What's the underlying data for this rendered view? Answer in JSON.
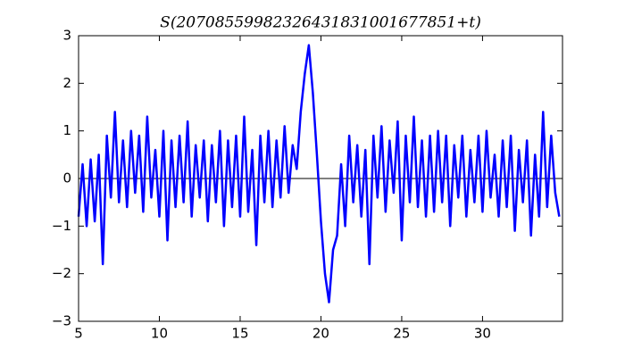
{
  "chart_data": {
    "type": "line",
    "title": "S(20708559982326431831001677851+t)",
    "x": [
      5,
      5.25,
      5.5,
      5.75,
      6,
      6.25,
      6.5,
      6.75,
      7,
      7.25,
      7.5,
      7.75,
      8,
      8.25,
      8.5,
      8.75,
      9,
      9.25,
      9.5,
      9.75,
      10,
      10.25,
      10.5,
      10.75,
      11,
      11.25,
      11.5,
      11.75,
      12,
      12.25,
      12.5,
      12.75,
      13,
      13.25,
      13.5,
      13.75,
      14,
      14.25,
      14.5,
      14.75,
      15,
      15.25,
      15.5,
      15.75,
      16,
      16.25,
      16.5,
      16.75,
      17,
      17.25,
      17.5,
      17.75,
      18,
      18.25,
      18.5,
      18.75,
      19,
      19.25,
      19.5,
      19.75,
      20,
      20.25,
      20.5,
      20.75,
      21,
      21.25,
      21.5,
      21.75,
      22,
      22.25,
      22.5,
      22.75,
      23,
      23.25,
      23.5,
      23.75,
      24,
      24.25,
      24.5,
      24.75,
      25,
      25.25,
      25.5,
      25.75,
      26,
      26.25,
      26.5,
      26.75,
      27,
      27.25,
      27.5,
      27.75,
      28,
      28.25,
      28.5,
      28.75,
      29,
      29.25,
      29.5,
      29.75,
      30,
      30.25,
      30.5,
      30.75,
      31,
      31.25,
      31.5,
      31.75,
      32,
      32.25,
      32.5,
      32.75,
      33,
      33.25,
      33.5,
      33.75,
      34,
      34.25,
      34.5,
      34.75
    ],
    "series": [
      {
        "color": "#0000ff",
        "values": [
          -0.8,
          0.3,
          -1.0,
          0.4,
          -0.9,
          0.5,
          -1.8,
          0.9,
          -0.4,
          1.4,
          -0.5,
          0.8,
          -0.6,
          1.0,
          -0.3,
          0.9,
          -0.7,
          1.3,
          -0.4,
          0.6,
          -0.8,
          1.0,
          -1.3,
          0.8,
          -0.6,
          0.9,
          -0.5,
          1.2,
          -0.8,
          0.7,
          -0.4,
          0.8,
          -0.9,
          0.7,
          -0.5,
          1.0,
          -1.0,
          0.8,
          -0.6,
          0.9,
          -0.8,
          1.3,
          -0.7,
          0.6,
          -1.4,
          0.9,
          -0.5,
          1.0,
          -0.6,
          0.8,
          -0.4,
          1.1,
          -0.3,
          0.7,
          0.2,
          1.4,
          2.2,
          2.8,
          1.8,
          0.5,
          -0.9,
          -2.0,
          -2.6,
          -1.5,
          -1.2,
          0.3,
          -1.0,
          0.9,
          -0.5,
          0.7,
          -0.8,
          0.6,
          -1.8,
          0.9,
          -0.4,
          1.1,
          -0.7,
          0.8,
          -0.3,
          1.2,
          -1.3,
          0.9,
          -0.5,
          1.3,
          -0.6,
          0.8,
          -0.8,
          0.9,
          -0.7,
          1.0,
          -0.5,
          0.9,
          -1.0,
          0.7,
          -0.4,
          0.9,
          -0.8,
          0.6,
          -0.5,
          0.9,
          -0.7,
          1.0,
          -0.4,
          0.5,
          -0.8,
          0.8,
          -0.6,
          0.9,
          -1.1,
          0.6,
          -0.5,
          0.8,
          -1.2,
          0.5,
          -0.8,
          1.4,
          -0.6,
          0.9,
          -0.3,
          -0.8
        ]
      }
    ],
    "hline": 0,
    "xlim": [
      5,
      34.95
    ],
    "ylim": [
      -3,
      3
    ],
    "xticks": [
      5,
      10,
      15,
      20,
      25,
      30
    ],
    "yticks": [
      {
        "value": -3,
        "label": "−3"
      },
      {
        "value": -2,
        "label": "−2"
      },
      {
        "value": -1,
        "label": "−1"
      },
      0,
      1,
      2,
      3
    ]
  }
}
